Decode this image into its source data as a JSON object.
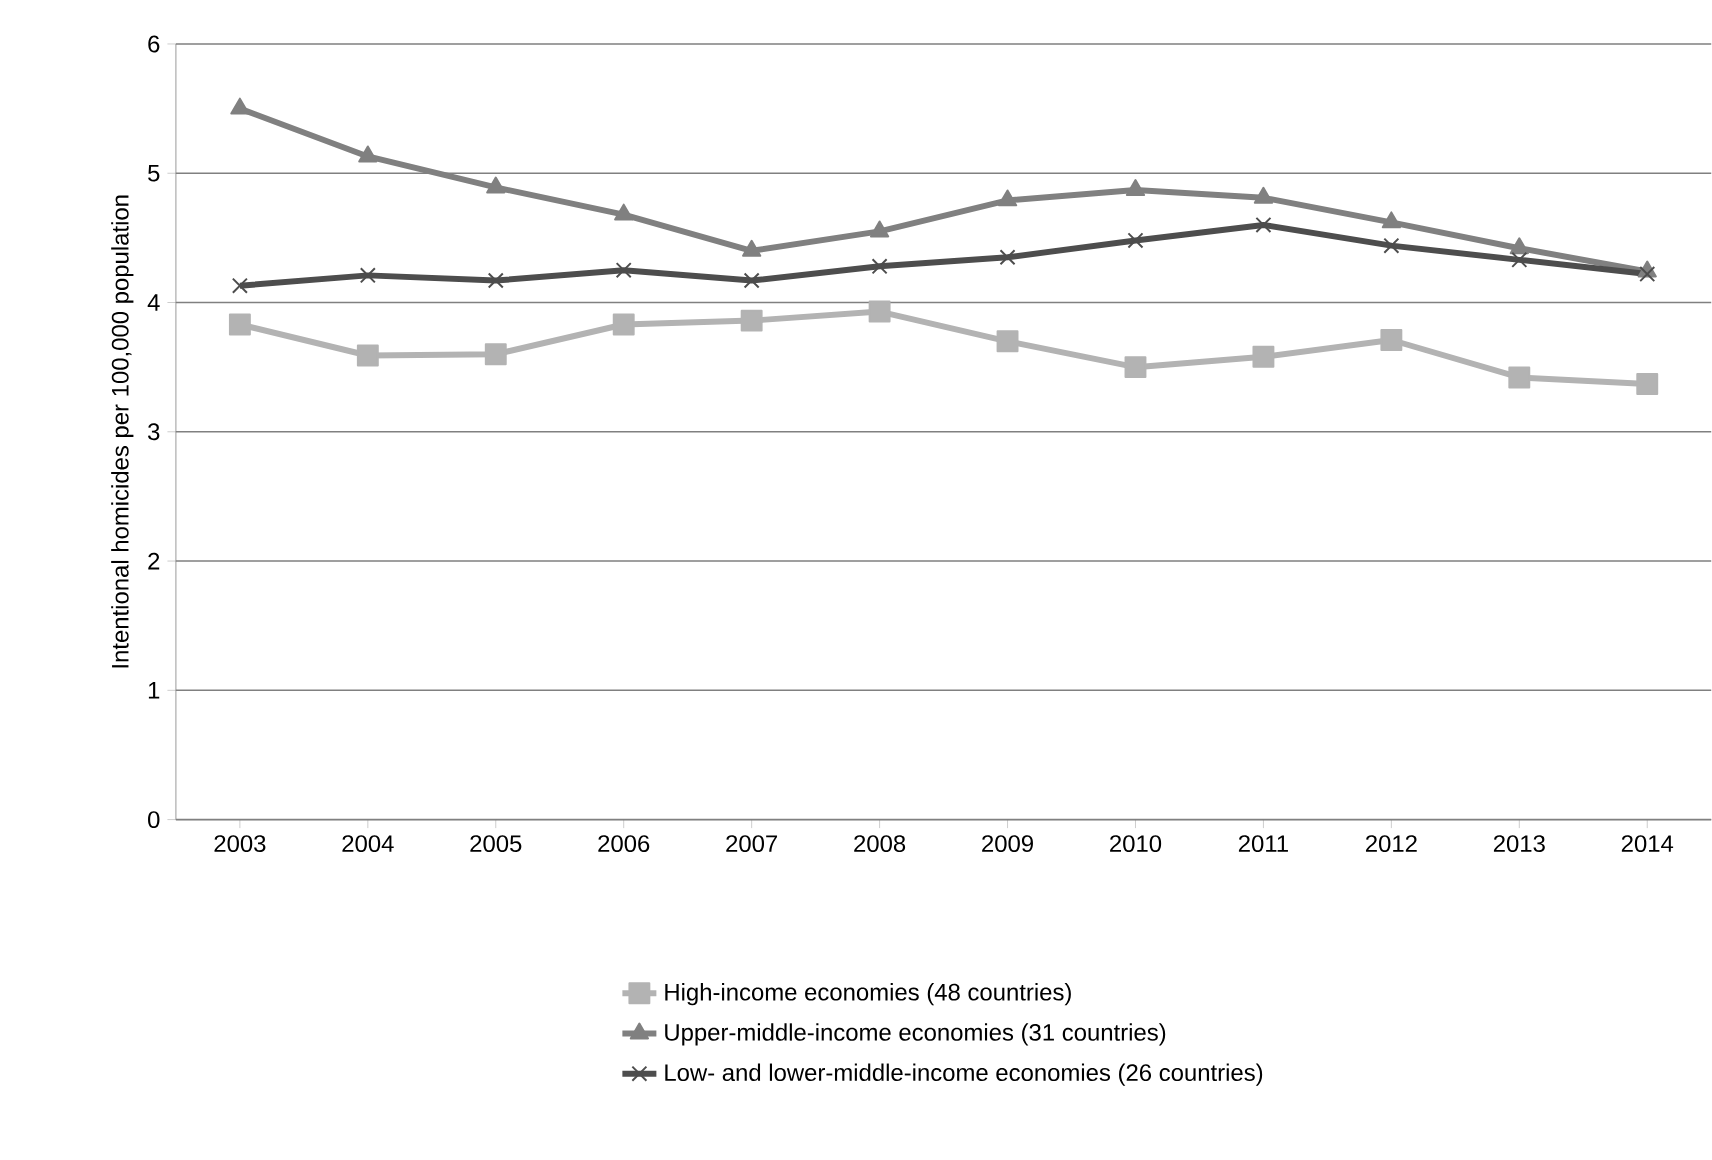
{
  "chart_data": {
    "type": "line",
    "ylabel": "Intentional homicides per 100,000 population",
    "categories": [
      "2003",
      "2004",
      "2005",
      "2006",
      "2007",
      "2008",
      "2009",
      "2010",
      "2011",
      "2012",
      "2013",
      "2014"
    ],
    "series": [
      {
        "name": "High-income economies (48 countries)",
        "color": "#b3b3b3",
        "marker": "square",
        "values": [
          3.83,
          3.59,
          3.6,
          3.83,
          3.86,
          3.93,
          3.7,
          3.5,
          3.58,
          3.71,
          3.42,
          3.37
        ]
      },
      {
        "name": "Upper-middle-income economies (31 countries)",
        "color": "#808080",
        "marker": "triangle",
        "values": [
          5.5,
          5.13,
          4.89,
          4.68,
          4.4,
          4.55,
          4.79,
          4.87,
          4.81,
          4.62,
          4.42,
          4.24
        ]
      },
      {
        "name": "Low- and lower-middle-income economies (26 countries)",
        "color": "#4d4d4d",
        "marker": "cross",
        "values": [
          4.13,
          4.21,
          4.17,
          4.25,
          4.17,
          4.28,
          4.35,
          4.48,
          4.6,
          4.44,
          4.33,
          4.22
        ]
      }
    ],
    "ylim": [
      0,
      6
    ],
    "yticks": [
      0,
      1,
      2,
      3,
      4,
      5,
      6
    ],
    "grid": "y",
    "legend": "bottom",
    "line_style": "solid"
  }
}
